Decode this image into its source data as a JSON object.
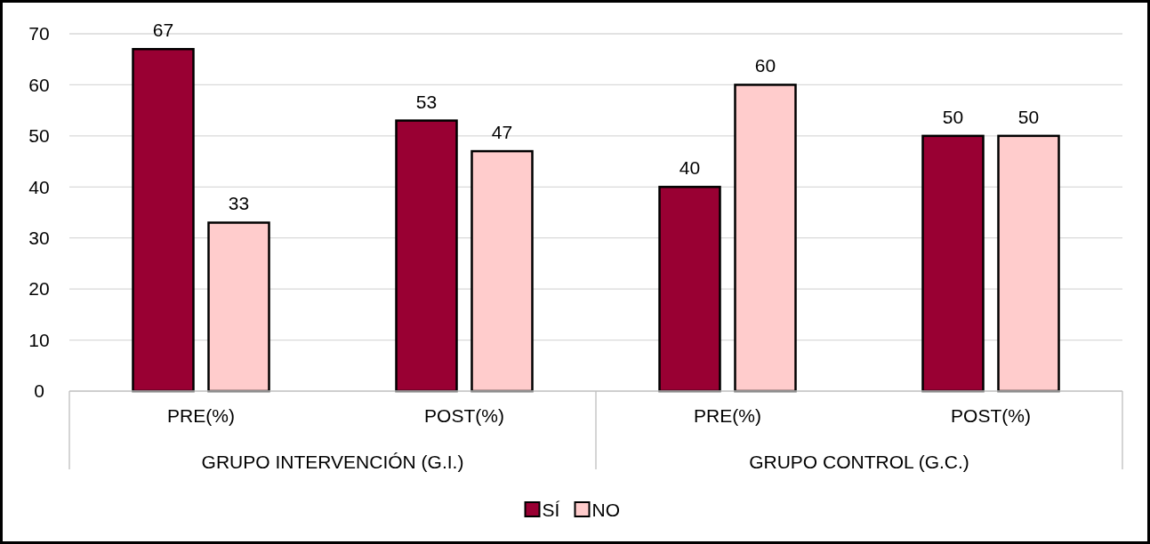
{
  "chart_data": {
    "type": "bar",
    "categories": [
      "PRE(%)",
      "POST(%)",
      "PRE(%)",
      "POST(%)"
    ],
    "series": [
      {
        "name": "SÍ",
        "color": "#990033",
        "values": [
          67,
          53,
          40,
          50
        ]
      },
      {
        "name": "NO",
        "color": "#ffcccc",
        "values": [
          33,
          47,
          60,
          50
        ]
      }
    ],
    "ylim": [
      0,
      70
    ],
    "yticks": [
      0,
      10,
      20,
      30,
      40,
      50,
      60,
      70
    ],
    "grid": "y",
    "legend": "bottom",
    "data_labels": true,
    "annotations": [
      "GRUPO INTERVENCIÓN (G.I.)",
      "GRUPO CONTROL (G.C.)"
    ]
  }
}
